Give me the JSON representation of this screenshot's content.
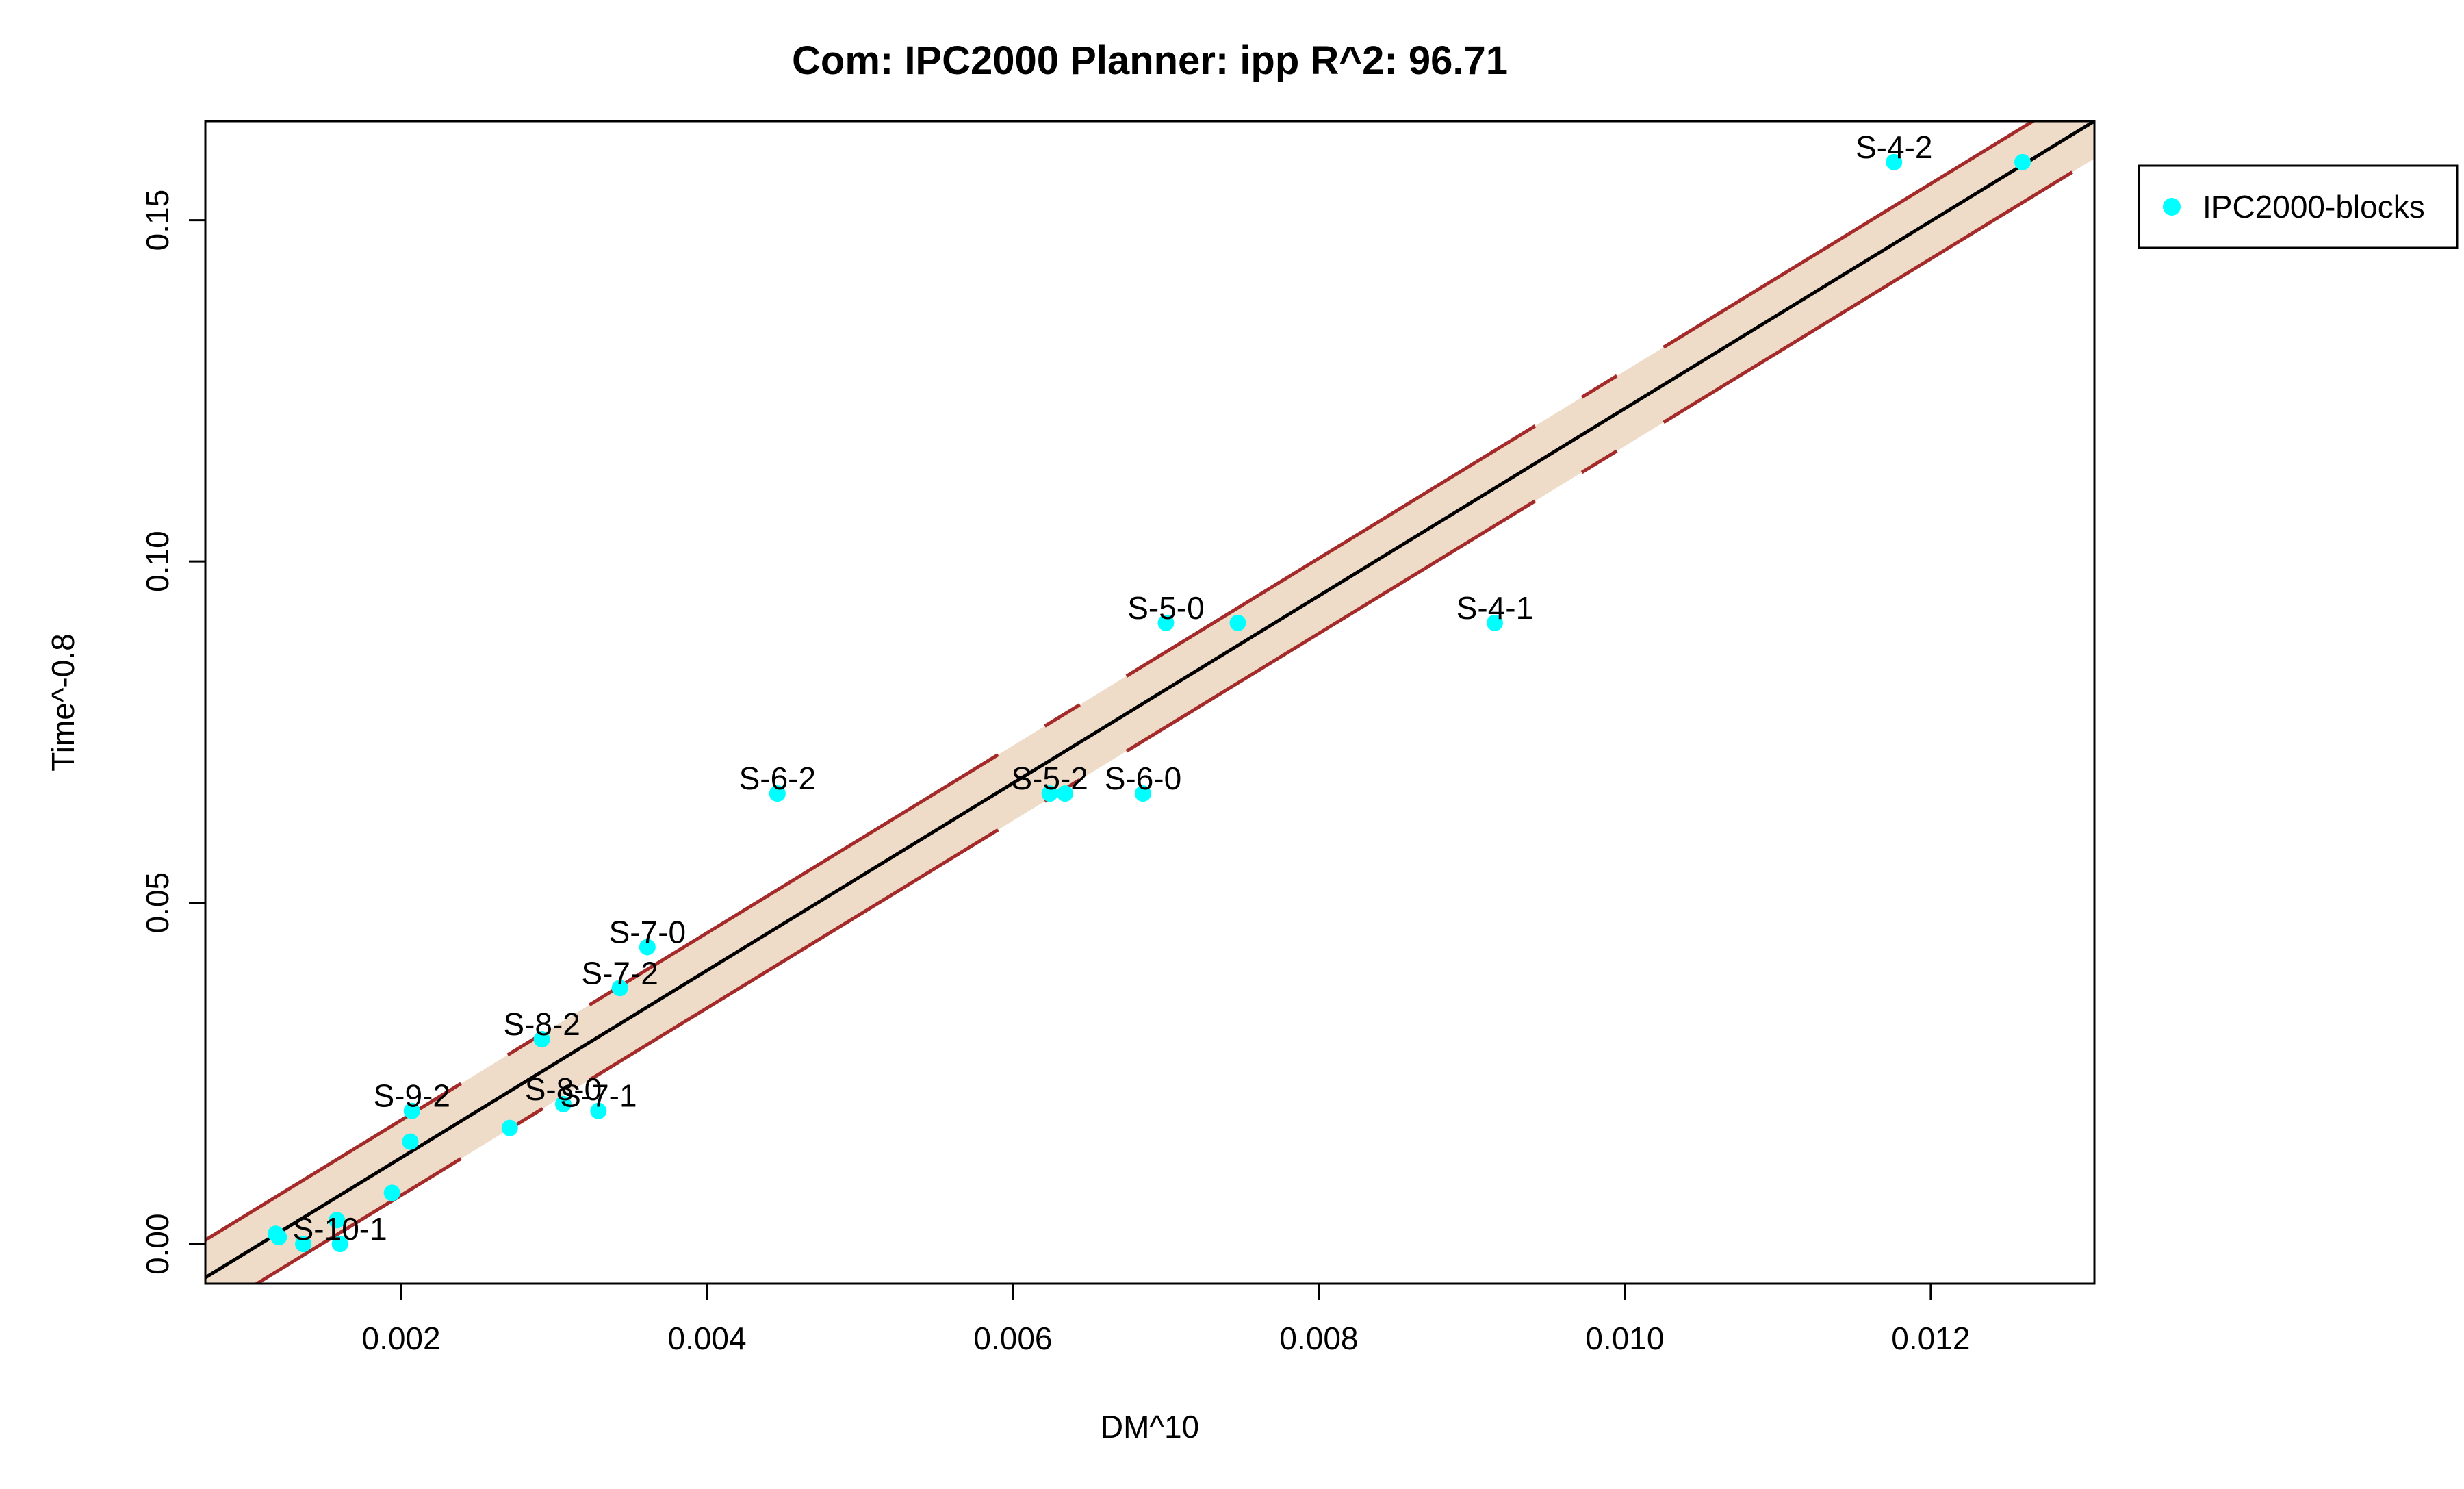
{
  "chart_data": {
    "type": "scatter",
    "title": "Com: IPC2000 Planner: ipp R^2: 96.71",
    "xlabel": "DM^10",
    "ylabel": "Time^-0.8",
    "xlim": [
      0.00072,
      0.01307
    ],
    "ylim": [
      -0.0058,
      0.1645
    ],
    "x_ticks": [
      {
        "value": 0.002,
        "label": "0.002"
      },
      {
        "value": 0.004,
        "label": "0.004"
      },
      {
        "value": 0.006,
        "label": "0.006"
      },
      {
        "value": 0.008,
        "label": "0.008"
      },
      {
        "value": 0.01,
        "label": "0.010"
      },
      {
        "value": 0.012,
        "label": "0.012"
      }
    ],
    "y_ticks": [
      {
        "value": 0.0,
        "label": "0.00"
      },
      {
        "value": 0.05,
        "label": "0.05"
      },
      {
        "value": 0.1,
        "label": "0.10"
      },
      {
        "value": 0.15,
        "label": "0.15"
      }
    ],
    "legend": {
      "position": "top-right-outside",
      "entries": [
        {
          "label": "IPC2000-blocks",
          "color": "#00ffff"
        }
      ]
    },
    "colors": {
      "points": "#00ffff",
      "fit_line": "#000000",
      "band_fill": "#eedcc8",
      "band_lines": "#a52a2a"
    },
    "fit": {
      "slope": 13.72,
      "intercept": -0.0148
    },
    "band_halfwidth": 0.0055,
    "series": [
      {
        "name": "IPC2000-blocks",
        "points": [
          {
            "x": 0.0126,
            "y": 0.1585,
            "label": ""
          },
          {
            "x": 0.01176,
            "y": 0.1585,
            "label": "S-4-2"
          },
          {
            "x": 0.00915,
            "y": 0.091,
            "label": "S-4-1"
          },
          {
            "x": 0.00747,
            "y": 0.091,
            "label": ""
          },
          {
            "x": 0.007,
            "y": 0.091,
            "label": "S-5-0"
          },
          {
            "x": 0.00685,
            "y": 0.066,
            "label": "S-6-0"
          },
          {
            "x": 0.00634,
            "y": 0.066,
            "label": ""
          },
          {
            "x": 0.00624,
            "y": 0.066,
            "label": "S-5-2"
          },
          {
            "x": 0.00446,
            "y": 0.066,
            "label": "S-6-2"
          },
          {
            "x": 0.00361,
            "y": 0.0435,
            "label": "S-7-0"
          },
          {
            "x": 0.00343,
            "y": 0.0375,
            "label": "S-7-2"
          },
          {
            "x": 0.00329,
            "y": 0.0195,
            "label": "S-7-1"
          },
          {
            "x": 0.00306,
            "y": 0.0205,
            "label": "S-8-0"
          },
          {
            "x": 0.00292,
            "y": 0.03,
            "label": "S-8-2"
          },
          {
            "x": 0.00271,
            "y": 0.017,
            "label": ""
          },
          {
            "x": 0.00207,
            "y": 0.0195,
            "label": "S-9-2"
          },
          {
            "x": 0.00206,
            "y": 0.015,
            "label": ""
          },
          {
            "x": 0.00194,
            "y": 0.0075,
            "label": ""
          },
          {
            "x": 0.0016,
            "y": 0.0,
            "label": "S-10-1"
          },
          {
            "x": 0.00158,
            "y": 0.0035,
            "label": ""
          },
          {
            "x": 0.00136,
            "y": 0.0,
            "label": ""
          },
          {
            "x": 0.0012,
            "y": 0.001,
            "label": ""
          },
          {
            "x": 0.00118,
            "y": 0.0015,
            "label": ""
          }
        ]
      }
    ]
  }
}
